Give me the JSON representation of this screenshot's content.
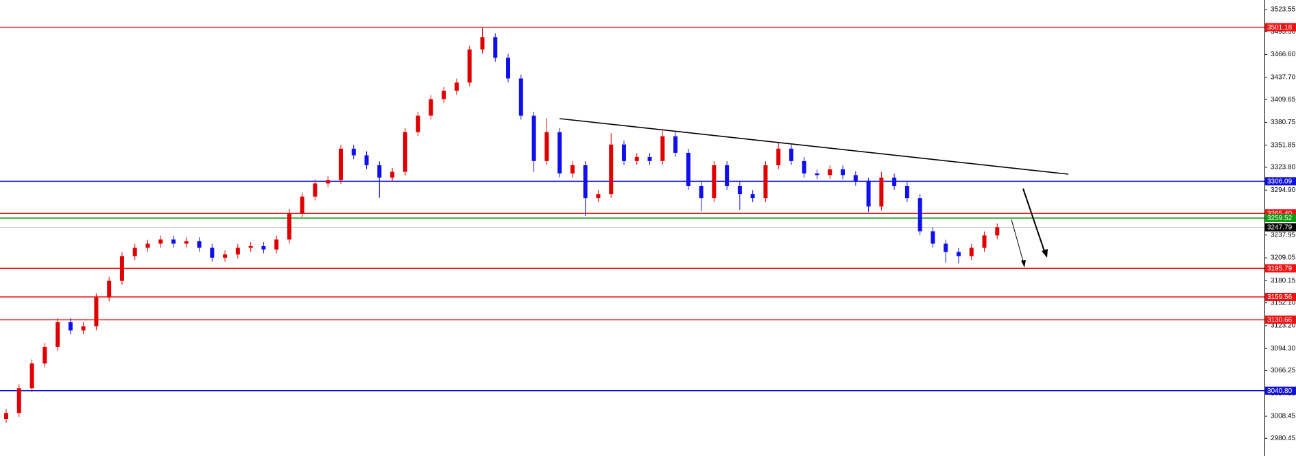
{
  "chart_data": {
    "type": "candlestick",
    "up_color": "#e00000",
    "down_color": "#1010ee",
    "ylim": [
      2958.1,
      3535.7
    ],
    "yticks": [
      3523.55,
      {
        "value": 3495.5,
        "label": "3495.50"
      },
      {
        "value": 3466.6,
        "label": "3466.60"
      },
      {
        "value": 3437.7,
        "label": "3437.70"
      },
      3409.65,
      3380.75,
      3351.85,
      {
        "value": 3323.8,
        "label": "3323.80"
      },
      {
        "value": 3294.9,
        "label": "3294.90"
      },
      3237.95,
      3209.05,
      3180.15,
      {
        "value": 3152.1,
        "label": "3152.10"
      },
      {
        "value": 3123.2,
        "label": "3123.20"
      },
      {
        "value": 3094.3,
        "label": "3094.30"
      },
      3066.25,
      3037.35,
      3008.45,
      2980.45
    ],
    "open": [
      3005.0,
      3012.6,
      3043.9,
      3075.3,
      3096.3,
      3127.6,
      3117.2,
      3122.4,
      3159.0,
      3179.9,
      3211.3,
      3221.8,
      3227.0,
      3232.3,
      3227.0,
      3230.2,
      3221.8,
      3209.3,
      3213.4,
      3221.8,
      3223.9,
      3219.7,
      3232.3,
      3265.8,
      3286.7,
      3303.4,
      3307.6,
      3347.4,
      3339.0,
      3326.4,
      3310.7,
      3318.1,
      3368.3,
      3389.2,
      3410.1,
      3420.6,
      3431.1,
      3472.9,
      3488.6,
      3462.5,
      3436.3,
      3389.2,
      3331.7,
      3368.3,
      3316.0,
      3326.4,
      3284.6,
      3289.8,
      3352.6,
      3331.7,
      3336.9,
      3331.7,
      3363.1,
      3342.1,
      3300.3,
      3284.6,
      3326.4,
      3300.3,
      3289.8,
      3284.6,
      3326.4,
      3347.4,
      3331.7,
      3316.0,
      3313.9,
      3321.2,
      3313.9,
      3305.5,
      3274.1,
      3310.7,
      3300.3,
      3284.6,
      3242.7,
      3227.0,
      3216.6,
      3211.3,
      3221.8,
      3237.5
    ],
    "high": [
      3017.6,
      3048.9,
      3080.3,
      3101.3,
      3132.6,
      3132.6,
      3127.4,
      3164.0,
      3184.9,
      3216.3,
      3226.8,
      3232.0,
      3237.3,
      3237.3,
      3235.2,
      3235.2,
      3226.8,
      3218.4,
      3226.8,
      3228.9,
      3228.9,
      3237.3,
      3270.8,
      3291.7,
      3308.4,
      3312.6,
      3352.4,
      3352.4,
      3344.0,
      3331.4,
      3323.1,
      3373.3,
      3394.2,
      3415.1,
      3425.6,
      3436.1,
      3477.9,
      3500.0,
      3493.6,
      3467.5,
      3441.3,
      3394.2,
      3386.0,
      3373.3,
      3331.4,
      3331.4,
      3294.8,
      3367.0,
      3357.6,
      3341.9,
      3341.9,
      3370.0,
      3368.1,
      3347.1,
      3305.3,
      3331.4,
      3331.4,
      3305.3,
      3294.8,
      3331.4,
      3356.0,
      3352.4,
      3336.7,
      3321.0,
      3326.2,
      3326.2,
      3318.9,
      3310.5,
      3318.0,
      3315.7,
      3305.3,
      3289.6,
      3247.7,
      3232.0,
      3221.6,
      3226.8,
      3242.5,
      3252.8
    ],
    "low": [
      3000.0,
      3007.6,
      3038.9,
      3070.3,
      3091.3,
      3112.2,
      3112.2,
      3117.4,
      3154.0,
      3174.9,
      3206.3,
      3216.8,
      3222.0,
      3222.0,
      3222.0,
      3216.8,
      3204.3,
      3204.3,
      3208.4,
      3216.8,
      3214.7,
      3214.7,
      3227.3,
      3260.8,
      3281.7,
      3298.4,
      3302.6,
      3334.0,
      3321.4,
      3285.0,
      3305.7,
      3313.1,
      3363.3,
      3384.2,
      3405.1,
      3415.6,
      3426.1,
      3467.9,
      3457.5,
      3431.3,
      3384.2,
      3318.0,
      3326.7,
      3311.0,
      3311.0,
      3262.0,
      3279.6,
      3284.8,
      3326.7,
      3326.7,
      3326.7,
      3326.7,
      3337.1,
      3295.3,
      3268.0,
      3279.6,
      3295.3,
      3270.0,
      3279.6,
      3279.6,
      3321.4,
      3326.7,
      3311.0,
      3308.9,
      3308.9,
      3308.9,
      3300.5,
      3267.0,
      3269.1,
      3295.3,
      3279.6,
      3237.7,
      3222.0,
      3203.0,
      3202.0,
      3206.3,
      3216.8,
      3232.5
    ],
    "close": [
      3012.6,
      3043.9,
      3075.3,
      3096.3,
      3127.6,
      3117.2,
      3122.4,
      3159.0,
      3179.9,
      3211.3,
      3221.8,
      3227.0,
      3232.3,
      3227.0,
      3230.2,
      3221.8,
      3209.3,
      3213.4,
      3221.8,
      3223.9,
      3219.7,
      3232.3,
      3265.8,
      3286.7,
      3303.4,
      3307.6,
      3347.4,
      3339.0,
      3326.4,
      3310.7,
      3318.1,
      3368.3,
      3389.2,
      3410.1,
      3420.6,
      3431.1,
      3472.9,
      3488.6,
      3462.5,
      3436.3,
      3389.2,
      3331.7,
      3368.3,
      3316.0,
      3326.4,
      3284.6,
      3289.8,
      3352.6,
      3331.7,
      3336.9,
      3331.7,
      3363.1,
      3342.1,
      3300.3,
      3284.6,
      3326.4,
      3300.3,
      3289.8,
      3284.6,
      3326.4,
      3347.4,
      3331.7,
      3316.0,
      3313.9,
      3321.2,
      3313.9,
      3305.5,
      3274.1,
      3310.7,
      3300.3,
      3284.6,
      3242.7,
      3227.0,
      3216.6,
      3211.3,
      3221.8,
      3237.5,
      3247.79
    ],
    "levels": [
      {
        "value": 3501.18,
        "color": "#ee1111"
      },
      {
        "value": 3306.09,
        "color": "#1111dd"
      },
      {
        "value": 3265.4,
        "label": "3265.40",
        "color": "#ee1111"
      },
      {
        "value": 3259.52,
        "color": "#119911"
      },
      {
        "value": 3247.79,
        "color": "#000000"
      },
      {
        "value": 3195.79,
        "color": "#ee1111"
      },
      {
        "value": 3159.56,
        "color": "#ee1111"
      },
      {
        "value": 3130.66,
        "color": "#ee1111"
      },
      {
        "value": 3040.8,
        "label": "3040.80",
        "color": "#1111dd"
      }
    ]
  }
}
